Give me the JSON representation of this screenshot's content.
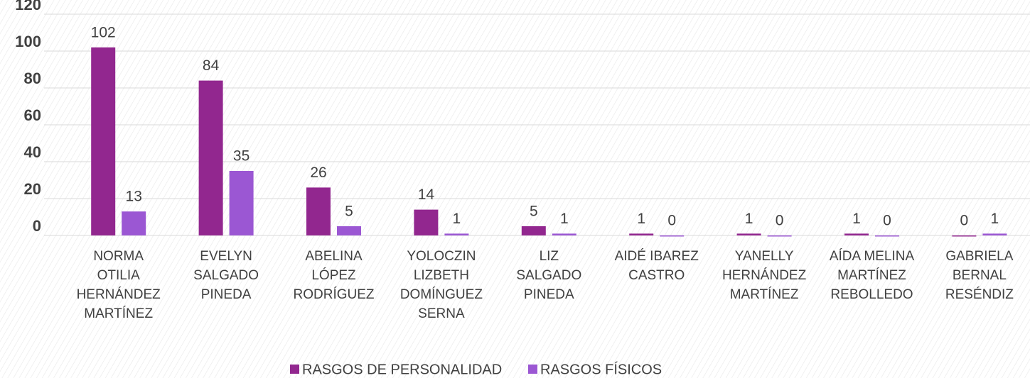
{
  "chart_data": {
    "type": "bar",
    "categories": [
      "NORMA OTILIA HERNÁNDEZ MARTÍNEZ",
      "EVELYN SALGADO PINEDA",
      "ABELINA LÓPEZ RODRÍGUEZ",
      "YOLOCZIN LIZBETH DOMÍNGUEZ SERNA",
      "LIZ SALGADO PINEDA",
      "AIDÉ IBAREZ CASTRO",
      "YANELLY HERNÁNDEZ MARTÍNEZ",
      "AÍDA MELINA MARTÍNEZ REBOLLEDO",
      "GABRIELA BERNAL RESÉNDIZ"
    ],
    "series": [
      {
        "name": "RASGOS DE PERSONALIDAD",
        "color": "#92278f",
        "values": [
          102,
          84,
          26,
          14,
          5,
          1,
          1,
          1,
          0
        ]
      },
      {
        "name": "RASGOS FÍSICOS",
        "color": "#9b57d3",
        "values": [
          13,
          35,
          5,
          1,
          1,
          0,
          0,
          0,
          1
        ]
      }
    ],
    "ylim": [
      0,
      120
    ],
    "yticks": [
      0,
      20,
      40,
      60,
      80,
      100,
      120
    ],
    "grid": true,
    "legend": "bottom"
  }
}
